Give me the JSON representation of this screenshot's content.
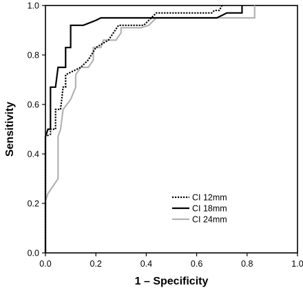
{
  "chart_data": {
    "type": "line",
    "xlabel": "1 –  Specificity",
    "ylabel": "Sensitivity",
    "xlim": [
      0,
      1
    ],
    "ylim": [
      0,
      1
    ],
    "x_ticks": [
      "0.0",
      "0.2",
      "0.4",
      "0.6",
      "0.8",
      "1.0"
    ],
    "y_ticks": [
      "0.0",
      "0.2",
      "0.4",
      "0.6",
      "0.8",
      "1.0"
    ],
    "grid": false,
    "legend_position": "bottom-right",
    "series": [
      {
        "name": "CI 12mm",
        "color": "#000000",
        "style": "dotted",
        "points": [
          [
            0,
            0
          ],
          [
            0,
            0.47
          ],
          [
            0.02,
            0.48
          ],
          [
            0.02,
            0.5
          ],
          [
            0.04,
            0.5
          ],
          [
            0.04,
            0.58
          ],
          [
            0.06,
            0.58
          ],
          [
            0.07,
            0.67
          ],
          [
            0.08,
            0.67
          ],
          [
            0.08,
            0.72
          ],
          [
            0.12,
            0.74
          ],
          [
            0.14,
            0.75
          ],
          [
            0.17,
            0.78
          ],
          [
            0.2,
            0.83
          ],
          [
            0.25,
            0.86
          ],
          [
            0.27,
            0.89
          ],
          [
            0.29,
            0.92
          ],
          [
            0.39,
            0.92
          ],
          [
            0.42,
            0.95
          ],
          [
            0.44,
            0.97
          ],
          [
            0.66,
            0.97
          ],
          [
            0.67,
            0.98
          ],
          [
            0.69,
            0.98
          ],
          [
            0.7,
            1.0
          ]
        ]
      },
      {
        "name": "CI 18mm",
        "color": "#000000",
        "style": "solid",
        "points": [
          [
            0,
            0
          ],
          [
            0,
            0.47
          ],
          [
            0.01,
            0.5
          ],
          [
            0.02,
            0.5
          ],
          [
            0.02,
            0.56
          ],
          [
            0.02,
            0.67
          ],
          [
            0.04,
            0.67
          ],
          [
            0.05,
            0.75
          ],
          [
            0.08,
            0.75
          ],
          [
            0.08,
            0.83
          ],
          [
            0.1,
            0.83
          ],
          [
            0.1,
            0.92
          ],
          [
            0.15,
            0.92
          ],
          [
            0.2,
            0.94
          ],
          [
            0.22,
            0.95
          ],
          [
            0.68,
            0.95
          ],
          [
            0.72,
            0.97
          ],
          [
            0.78,
            0.97
          ],
          [
            0.78,
            1.0
          ]
        ]
      },
      {
        "name": "CI 24mm",
        "color": "#b3b3b3",
        "style": "solid",
        "points": [
          [
            0,
            0
          ],
          [
            0,
            0.21
          ],
          [
            0.01,
            0.24
          ],
          [
            0.05,
            0.3
          ],
          [
            0.05,
            0.47
          ],
          [
            0.06,
            0.5
          ],
          [
            0.07,
            0.58
          ],
          [
            0.1,
            0.62
          ],
          [
            0.12,
            0.67
          ],
          [
            0.12,
            0.72
          ],
          [
            0.14,
            0.75
          ],
          [
            0.17,
            0.75
          ],
          [
            0.19,
            0.78
          ],
          [
            0.19,
            0.83
          ],
          [
            0.22,
            0.83
          ],
          [
            0.23,
            0.86
          ],
          [
            0.28,
            0.86
          ],
          [
            0.3,
            0.89
          ],
          [
            0.3,
            0.91
          ],
          [
            0.38,
            0.91
          ],
          [
            0.41,
            0.92
          ],
          [
            0.44,
            0.95
          ],
          [
            0.79,
            0.95
          ],
          [
            0.79,
            0.95
          ],
          [
            0.82,
            0.95
          ],
          [
            0.83,
            0.95
          ],
          [
            0.83,
            1.0
          ]
        ]
      }
    ]
  }
}
